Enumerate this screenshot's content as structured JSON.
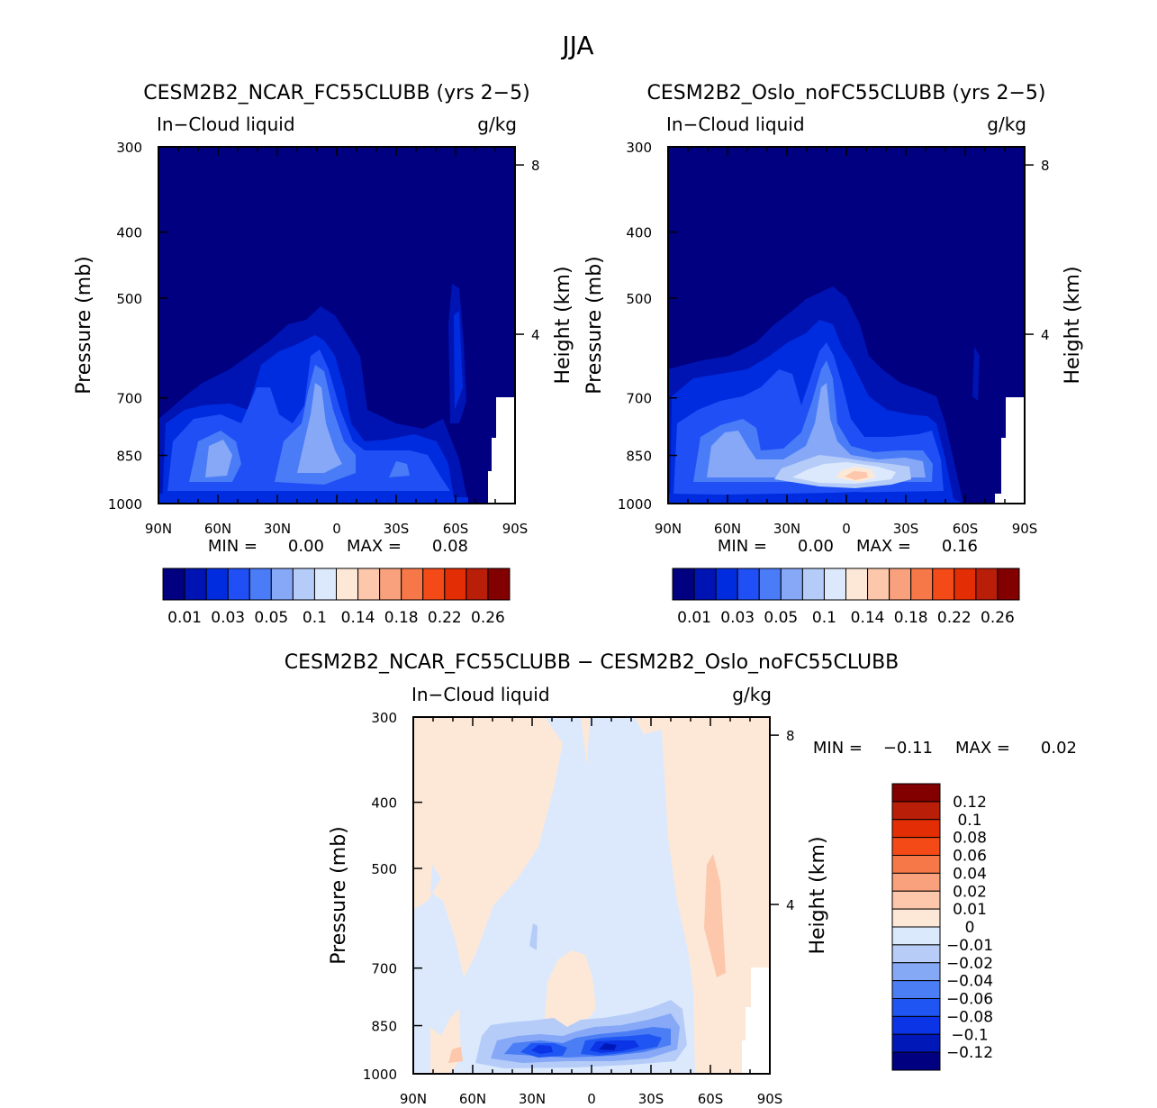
{
  "figure": {
    "title": "JJA"
  },
  "colors": {
    "main_scale": [
      "#000080",
      "#0014b4",
      "#002ce0",
      "#1f4ff5",
      "#4a7cf7",
      "#86a8f7",
      "#b5ccf8",
      "#dce9fc",
      "#fde8d8",
      "#fcc7aa",
      "#f9a07c",
      "#f67848",
      "#f34a18",
      "#e22d05",
      "#b81e08",
      "#820000"
    ],
    "diff_scale": [
      "#000080",
      "#0018b8",
      "#0a34e6",
      "#1f55f2",
      "#4b7df4",
      "#86a9f6",
      "#b7cdf7",
      "#dbe9fc",
      "#fde8d8",
      "#fcc7aa",
      "#f9a07c",
      "#f67848",
      "#f34a18",
      "#e22d05",
      "#b81e08",
      "#820000"
    ]
  },
  "chart_data": [
    {
      "type": "contour",
      "title": "CESM2B2_NCAR_FC55CLUBB (yrs 2−5)",
      "left_label": "In−Cloud liquid",
      "right_label": "g/kg",
      "xlabel": "",
      "ylabel": "Pressure (mb)",
      "ylabel_right": "Height (km)",
      "x_ticks": [
        "90N",
        "60N",
        "30N",
        "0",
        "30S",
        "60S",
        "90S"
      ],
      "y_ticks": [
        "300",
        "400",
        "500",
        "700",
        "850",
        "1000"
      ],
      "y_ticks_right": [
        "8",
        "4"
      ],
      "xlim": [
        90,
        -90
      ],
      "ylim": [
        1000,
        300
      ],
      "min_label": "MIN =",
      "min_value": "0.00",
      "max_label": "MAX =",
      "max_value": "0.08",
      "colorbar_labels": [
        "0.01",
        "0.03",
        "0.05",
        "0.1",
        "0.14",
        "0.18",
        "0.22",
        "0.26"
      ]
    },
    {
      "type": "contour",
      "title": "CESM2B2_Oslo_noFC55CLUBB (yrs 2−5)",
      "left_label": "In−Cloud liquid",
      "right_label": "g/kg",
      "xlabel": "",
      "ylabel": "Pressure (mb)",
      "ylabel_right": "Height (km)",
      "x_ticks": [
        "90N",
        "60N",
        "30N",
        "0",
        "30S",
        "60S",
        "90S"
      ],
      "y_ticks": [
        "300",
        "400",
        "500",
        "700",
        "850",
        "1000"
      ],
      "y_ticks_right": [
        "8",
        "4"
      ],
      "xlim": [
        90,
        -90
      ],
      "ylim": [
        1000,
        300
      ],
      "min_label": "MIN =",
      "min_value": "0.00",
      "max_label": "MAX =",
      "max_value": "0.16",
      "colorbar_labels": [
        "0.01",
        "0.03",
        "0.05",
        "0.1",
        "0.14",
        "0.18",
        "0.22",
        "0.26"
      ]
    },
    {
      "type": "contour",
      "title": "CESM2B2_NCAR_FC55CLUBB − CESM2B2_Oslo_noFC55CLUBB",
      "left_label": "In−Cloud liquid",
      "right_label": "g/kg",
      "xlabel": "",
      "ylabel": "Pressure (mb)",
      "ylabel_right": "Height (km)",
      "x_ticks": [
        "90N",
        "60N",
        "30N",
        "0",
        "30S",
        "60S",
        "90S"
      ],
      "y_ticks": [
        "300",
        "400",
        "500",
        "700",
        "850",
        "1000"
      ],
      "y_ticks_right": [
        "8",
        "4"
      ],
      "xlim": [
        90,
        -90
      ],
      "ylim": [
        1000,
        300
      ],
      "min_label": "MIN =",
      "min_value": "−0.11",
      "max_label": "MAX =",
      "max_value": "0.02",
      "colorbar_labels": [
        "0.12",
        "0.1",
        "0.08",
        "0.06",
        "0.04",
        "0.02",
        "0.01",
        "0",
        "−0.01",
        "−0.02",
        "−0.04",
        "−0.06",
        "−0.08",
        "−0.1",
        "−0.12"
      ]
    }
  ]
}
